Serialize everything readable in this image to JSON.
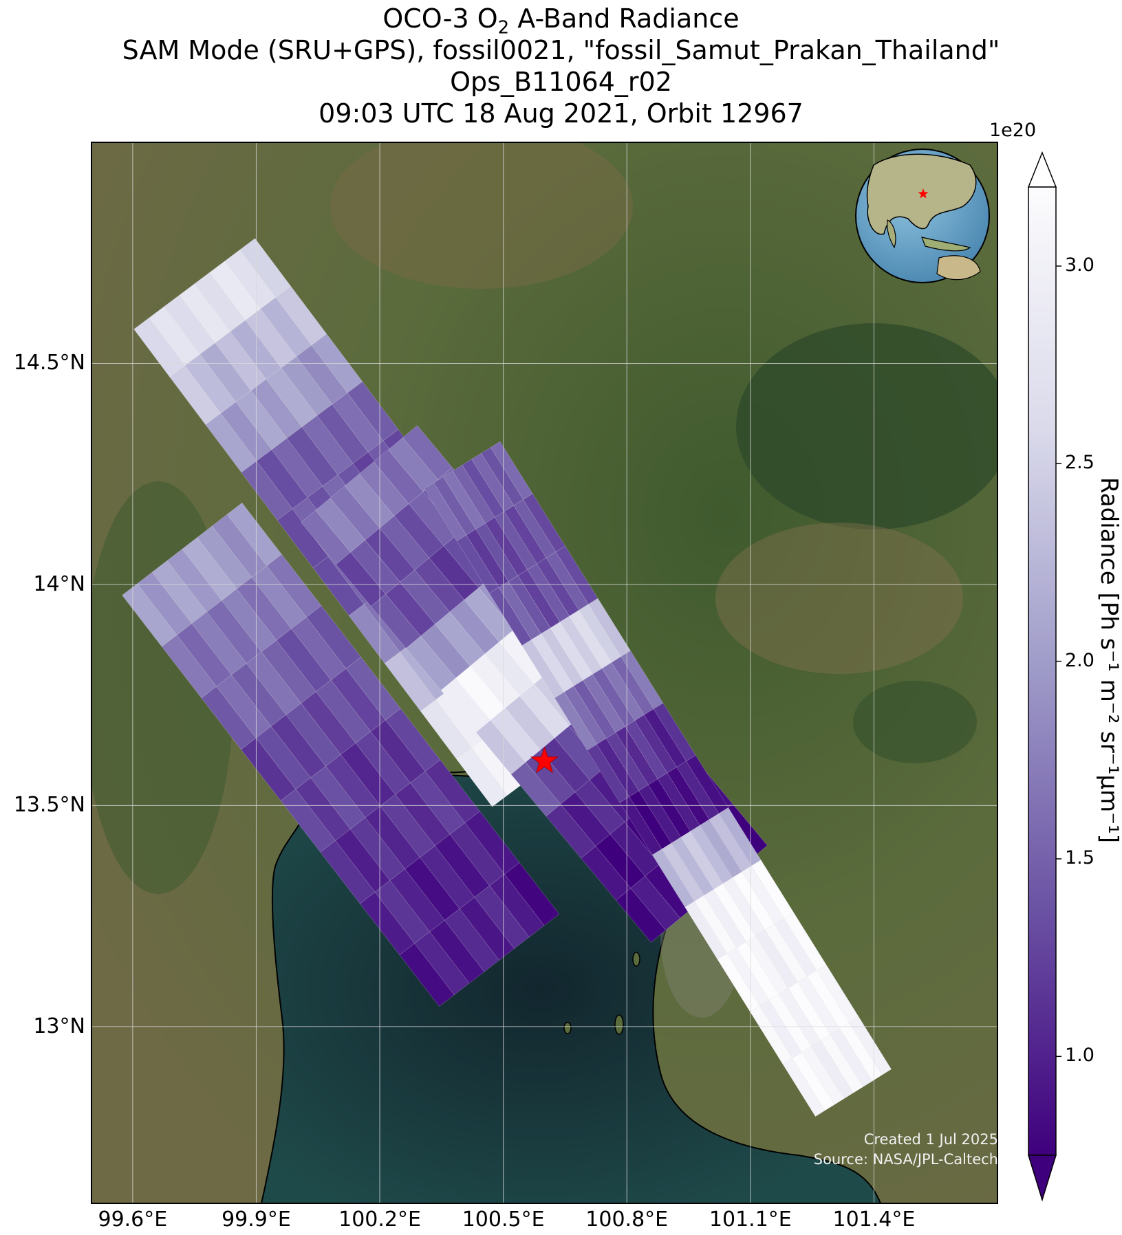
{
  "title": {
    "line1_prefix": "OCO-3 O",
    "line1_sub": "2",
    "line1_suffix": " A-Band Radiance",
    "line2": "SAM Mode (SRU+GPS), fossil0021, \"fossil_Samut_Prakan_Thailand\"",
    "line3": "Ops_B11064_r02",
    "line4": "09:03 UTC 18 Aug 2021, Orbit 12967"
  },
  "map": {
    "lon_range": [
      99.5,
      101.7
    ],
    "lat_range": [
      12.6,
      15.0
    ],
    "lon_ticks": [
      "99.6°E",
      "99.9°E",
      "100.2°E",
      "100.5°E",
      "100.8°E",
      "101.1°E",
      "101.4°E"
    ],
    "lat_ticks": [
      "14.5°N",
      "14°N",
      "13.5°N",
      "13°N"
    ],
    "target_marker": {
      "lon": 100.6,
      "lat": 13.6,
      "color": "#ff0000",
      "icon": "star-icon"
    },
    "colors": {
      "land": "#5a6b3a",
      "water": "#1a3a44",
      "grid": "#d9d9d9"
    }
  },
  "colorbar": {
    "exponent_label": "1e20",
    "label": "Radiance [Ph s⁻¹ m⁻² sr⁻¹μm⁻¹]",
    "tick_labels": [
      "1.0",
      "1.5",
      "2.0",
      "2.5",
      "3.0"
    ],
    "range": [
      0.75,
      3.2
    ],
    "colormap": "Purples_r",
    "extend": "both"
  },
  "chart_data": {
    "type": "heatmap",
    "title": "OCO-3 O2 A-Band Radiance",
    "units": "Ph s-1 m-2 sr-1 um-1",
    "value_scale": 1e+20,
    "vmin": 0.75,
    "vmax": 3.2,
    "swaths": [
      {
        "name": "swath-1",
        "start": [
          99.75,
          14.68
        ],
        "end": [
          100.62,
          13.6
        ],
        "values": [
          2.7,
          2.3,
          2.0,
          1.5,
          1.4,
          1.5,
          1.7,
          2.3,
          2.8,
          3.0
        ]
      },
      {
        "name": "swath-2",
        "start": [
          99.72,
          14.08
        ],
        "end": [
          100.49,
          13.15
        ],
        "values": [
          2.0,
          1.7,
          1.5,
          1.3,
          1.2,
          1.1,
          1.0,
          0.95
        ]
      },
      {
        "name": "swath-3",
        "start": [
          100.15,
          14.25
        ],
        "end": [
          101.0,
          13.3
        ],
        "values": [
          1.7,
          1.4,
          1.3,
          2.0,
          3.0,
          2.5,
          1.3,
          1.0,
          0.9,
          0.85
        ]
      },
      {
        "name": "swath-4",
        "start": [
          100.4,
          14.27
        ],
        "end": [
          101.35,
          12.85
        ],
        "values": [
          1.5,
          1.3,
          1.4,
          2.5,
          1.6,
          1.1,
          0.9,
          2.3,
          3.1,
          3.1,
          3.1,
          3.1
        ]
      }
    ]
  },
  "credits": {
    "created": "Created 1 Jul 2025",
    "source": "Source: NASA/JPL-Caltech"
  }
}
